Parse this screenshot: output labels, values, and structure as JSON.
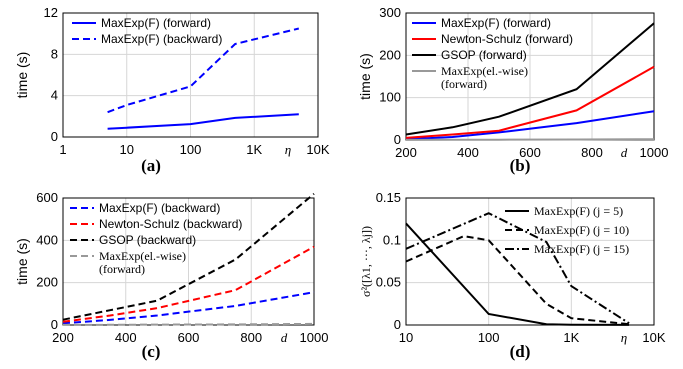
{
  "chart_data": [
    {
      "type": "line",
      "panel_label": "(a)",
      "ylabel": "time (s)",
      "xlabel": "η",
      "x_scale": "log",
      "xlim": [
        1,
        10000
      ],
      "ylim": [
        0,
        12
      ],
      "x_ticks": [
        1,
        10,
        100,
        1000,
        10000
      ],
      "x_tick_labels": [
        "1",
        "10",
        "100",
        "1K",
        "10K"
      ],
      "y_ticks": [
        0,
        4,
        8,
        12
      ],
      "y_tick_labels": [
        "0",
        "4",
        "8",
        "12"
      ],
      "grid": true,
      "legend_position": "top-left",
      "series": [
        {
          "name": "MaxExp(F) (forward)",
          "color": "#0000ff",
          "dash": "solid",
          "x": [
            5,
            10,
            100,
            500,
            5000
          ],
          "y": [
            0.8,
            0.9,
            1.25,
            1.85,
            2.2
          ]
        },
        {
          "name": "MaxExp(F) (backward)",
          "color": "#0000ff",
          "dash": "dashed",
          "x": [
            5,
            10,
            100,
            500,
            5000
          ],
          "y": [
            2.4,
            3.1,
            4.9,
            9.0,
            10.5
          ]
        }
      ]
    },
    {
      "type": "line",
      "panel_label": "(b)",
      "ylabel": "time (s)",
      "xlabel": "d",
      "xlim": [
        200,
        1000
      ],
      "ylim": [
        0,
        300
      ],
      "x_ticks": [
        200,
        400,
        600,
        800,
        1000
      ],
      "x_tick_labels": [
        "200",
        "400",
        "600",
        "800",
        "1000"
      ],
      "y_ticks": [
        0,
        100,
        200,
        300
      ],
      "y_tick_labels": [
        "0",
        "100",
        "200",
        "300"
      ],
      "grid": true,
      "legend_position": "top-left",
      "series": [
        {
          "name": "MaxExp(F) (forward)",
          "color": "#0000ff",
          "dash": "solid",
          "x": [
            200,
            350,
            500,
            750,
            1000
          ],
          "y": [
            2,
            7,
            18,
            40,
            68
          ]
        },
        {
          "name": "Newton-Schulz (forward)",
          "color": "#ff0000",
          "dash": "solid",
          "x": [
            200,
            350,
            500,
            750,
            1000
          ],
          "y": [
            5,
            13,
            22,
            70,
            173
          ]
        },
        {
          "name": "GSOP (forward)",
          "color": "#000000",
          "dash": "solid",
          "x": [
            200,
            350,
            500,
            750,
            1000
          ],
          "y": [
            13,
            30,
            55,
            120,
            276
          ]
        },
        {
          "name": "MaxExp(el.-wise) (forward)",
          "color": "#999999",
          "dash": "solid",
          "x": [
            200,
            350,
            500,
            750,
            1000
          ],
          "y": [
            0.3,
            0.5,
            0.8,
            1.2,
            1.8
          ]
        }
      ]
    },
    {
      "type": "line",
      "panel_label": "(c)",
      "ylabel": "time (s)",
      "xlabel": "d",
      "xlim": [
        200,
        1000
      ],
      "ylim": [
        0,
        600
      ],
      "x_ticks": [
        200,
        400,
        600,
        800,
        1000
      ],
      "x_tick_labels": [
        "200",
        "400",
        "600",
        "800",
        "1000"
      ],
      "y_ticks": [
        0,
        200,
        400,
        600
      ],
      "y_tick_labels": [
        "0",
        "200",
        "400",
        "600"
      ],
      "grid": true,
      "legend_position": "top-left",
      "series": [
        {
          "name": "MaxExp(F) (backward)",
          "color": "#0000ff",
          "dash": "dashed",
          "x": [
            200,
            350,
            500,
            750,
            1000
          ],
          "y": [
            8,
            24,
            45,
            90,
            155
          ]
        },
        {
          "name": "Newton-Schulz (backward)",
          "color": "#ff0000",
          "dash": "dashed",
          "x": [
            200,
            350,
            500,
            750,
            1000
          ],
          "y": [
            15,
            45,
            80,
            165,
            370
          ]
        },
        {
          "name": "GSOP (backward)",
          "color": "#000000",
          "dash": "dashed",
          "x": [
            200,
            350,
            500,
            750,
            1000
          ],
          "y": [
            25,
            70,
            115,
            310,
            620
          ]
        },
        {
          "name": "MaxExp(el.-wise) (forward)",
          "color": "#999999",
          "dash": "dashed",
          "x": [
            200,
            350,
            500,
            750,
            1000
          ],
          "y": [
            0.5,
            1,
            2,
            3,
            5
          ]
        }
      ]
    },
    {
      "type": "line",
      "panel_label": "(d)",
      "ylabel": "σ²([λ1, ···, λj])",
      "xlabel": "η",
      "x_scale": "log",
      "xlim": [
        10,
        10000
      ],
      "ylim": [
        0,
        0.15
      ],
      "x_ticks": [
        10,
        100,
        1000,
        10000
      ],
      "x_tick_labels": [
        "10",
        "100",
        "1K",
        "10K"
      ],
      "y_ticks": [
        0,
        0.05,
        0.1,
        0.15
      ],
      "y_tick_labels": [
        "0",
        "0.05",
        "0.1",
        "0.15"
      ],
      "grid": true,
      "legend_position": "top-right",
      "series": [
        {
          "name": "MaxExp(F) (j = 5)",
          "color": "#000000",
          "dash": "solid",
          "x": [
            10,
            100,
            500,
            1000,
            5000
          ],
          "y": [
            0.12,
            0.013,
            0.001,
            0.0003,
            0.0001
          ]
        },
        {
          "name": "MaxExp(F) (j = 10)",
          "color": "#000000",
          "dash": "dashed",
          "x": [
            10,
            50,
            100,
            500,
            1000,
            5000
          ],
          "y": [
            0.075,
            0.105,
            0.1,
            0.025,
            0.008,
            0.001
          ]
        },
        {
          "name": "MaxExp(F) (j = 15)",
          "color": "#000000",
          "dash": "dashdot",
          "x": [
            10,
            100,
            500,
            1000,
            5000
          ],
          "y": [
            0.09,
            0.132,
            0.098,
            0.046,
            0.002
          ]
        }
      ]
    }
  ]
}
